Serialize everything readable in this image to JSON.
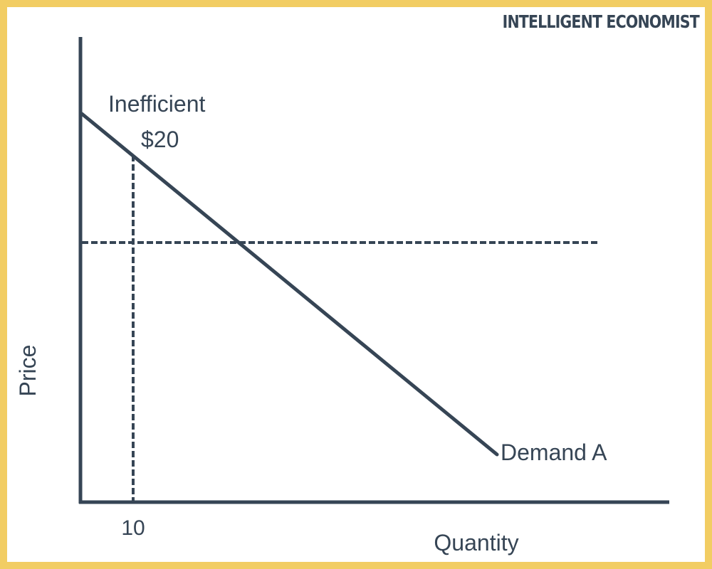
{
  "brand": {
    "text": "INTELLIGENT ECONOMIST"
  },
  "colors": {
    "line": "#364555",
    "border": "#f2cd63",
    "background": "#ffffff"
  },
  "chart_data": {
    "type": "line",
    "title": "",
    "xlabel": "Quantity",
    "ylabel": "Price",
    "series": [
      {
        "name": "Demand A",
        "style": "solid"
      }
    ],
    "reference_lines": [
      {
        "orientation": "vertical",
        "style": "dashed",
        "x_label": "10"
      },
      {
        "orientation": "horizontal",
        "style": "dashed"
      }
    ],
    "annotations": [
      {
        "text": "Inefficient"
      },
      {
        "text": "$20"
      }
    ],
    "tick_labels": {
      "x": [
        "10"
      ]
    },
    "grid": false
  }
}
